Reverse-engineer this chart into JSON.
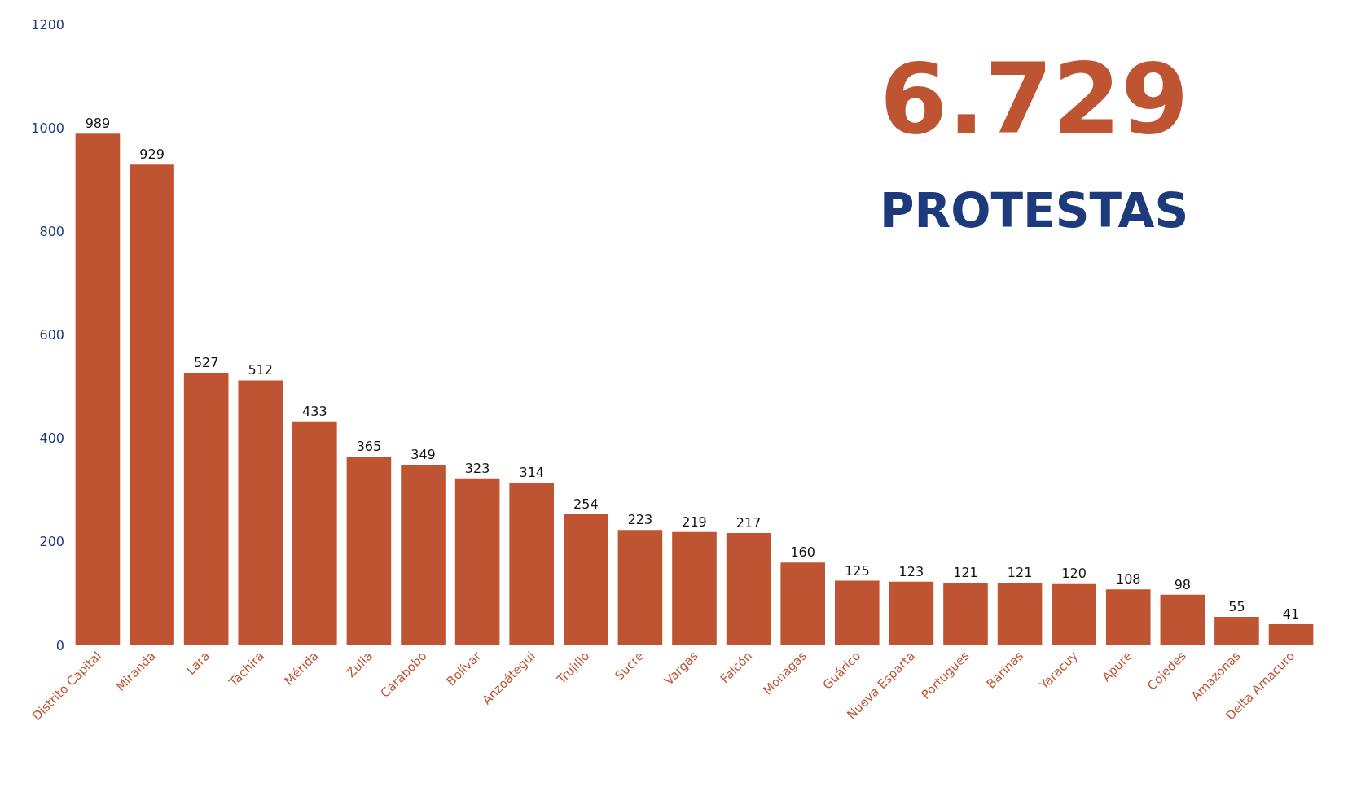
{
  "chart_data": {
    "type": "bar",
    "categories": [
      "Distrito Capital",
      "Miranda",
      "Lara",
      "Táchira",
      "Mérida",
      "Zulia",
      "Carabobo",
      "Bolívar",
      "Anzoátegui",
      "Trujillo",
      "Sucre",
      "Vargas",
      "Falcón",
      "Monagas",
      "Guárico",
      "Nueva Esparta",
      "Portugues",
      "Barinas",
      "Yaracuy",
      "Apure",
      "Cojedes",
      "Amazonas",
      "Delta Amacuro"
    ],
    "values": [
      989,
      929,
      527,
      512,
      433,
      365,
      349,
      323,
      314,
      254,
      223,
      219,
      217,
      160,
      125,
      123,
      121,
      121,
      120,
      108,
      98,
      55,
      41
    ],
    "color": "#bf5433",
    "ylim": [
      0,
      1200
    ],
    "yticks": [
      0,
      200,
      400,
      600,
      800,
      1000,
      1200
    ],
    "data_labels": true,
    "annotations": [
      "6.729",
      "PROTESTAS"
    ]
  }
}
